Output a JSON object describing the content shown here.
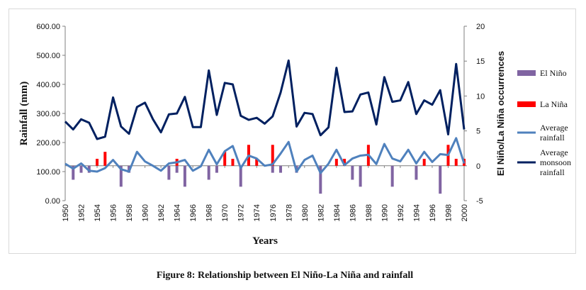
{
  "caption": "Figure 8: Relationship between El Niño-La Niña and rainfall",
  "chart_data": {
    "type": "bar",
    "title": "",
    "xlabel": "Years",
    "ylabel": "Rainfall (mm)",
    "y2label": "El Niño/La Niña occurrences",
    "ylim": [
      0,
      600
    ],
    "y2lim": [
      -5,
      20
    ],
    "yticks": [
      "0.00",
      "100.00",
      "200.00",
      "300.00",
      "400.00",
      "500.00",
      "600.00"
    ],
    "y2ticks": [
      "-5",
      "0",
      "5",
      "10",
      "15",
      "20"
    ],
    "xtick_labels": [
      "1950",
      "1952",
      "1954",
      "1956",
      "1958",
      "1960",
      "1962",
      "1964",
      "1966",
      "1968",
      "1970",
      "1972",
      "1974",
      "1976",
      "1978",
      "1980",
      "1982",
      "1984",
      "1986",
      "1988",
      "1990",
      "1992",
      "1994",
      "1996",
      "1998",
      "2000"
    ],
    "x": [
      1950,
      1951,
      1952,
      1953,
      1954,
      1955,
      1956,
      1957,
      1958,
      1959,
      1960,
      1961,
      1962,
      1963,
      1964,
      1965,
      1966,
      1967,
      1968,
      1969,
      1970,
      1971,
      1972,
      1973,
      1974,
      1975,
      1976,
      1977,
      1978,
      1979,
      1980,
      1981,
      1982,
      1983,
      1984,
      1985,
      1986,
      1987,
      1988,
      1989,
      1990,
      1991,
      1992,
      1993,
      1994,
      1995,
      1996,
      1997,
      1998,
      1999,
      2000
    ],
    "grid": false,
    "legend_position": "right",
    "series": [
      {
        "name": "El Niño",
        "kind": "bar",
        "axis": "right",
        "color": "#8064A2",
        "values": [
          0,
          -2,
          -1,
          -1,
          0,
          0,
          0,
          -3,
          -1,
          0,
          0,
          0,
          0,
          -2,
          -1,
          -3,
          0,
          0,
          -2,
          -1,
          0,
          0,
          -3,
          0,
          0,
          0,
          -1,
          -1,
          0,
          -1,
          0,
          0,
          -4,
          0,
          0,
          0,
          -2,
          -3,
          0,
          0,
          0,
          -3,
          0,
          0,
          -2,
          0,
          0,
          -4,
          0,
          0,
          0
        ]
      },
      {
        "name": "La Niña",
        "kind": "bar",
        "axis": "right",
        "color": "#FF0000",
        "values": [
          0,
          0,
          0,
          0,
          1,
          2,
          0,
          0,
          0,
          0,
          0,
          0,
          0,
          0,
          1,
          0,
          0,
          0,
          0,
          0,
          2,
          1,
          0,
          3,
          1,
          0,
          3,
          0,
          0,
          0,
          0,
          0,
          0,
          0,
          1,
          1,
          0,
          0,
          3,
          0,
          0,
          0,
          0,
          0,
          0,
          1,
          0,
          0,
          3,
          1,
          1
        ]
      },
      {
        "name": "Average rainfall",
        "kind": "line",
        "axis": "left",
        "color": "#4F81BD",
        "values": [
          127,
          110,
          128,
          103,
          100,
          112,
          140,
          108,
          100,
          168,
          135,
          120,
          103,
          128,
          132,
          140,
          103,
          118,
          175,
          125,
          170,
          188,
          112,
          155,
          145,
          120,
          125,
          162,
          202,
          100,
          140,
          155,
          95,
          127,
          175,
          122,
          145,
          155,
          158,
          126,
          195,
          145,
          135,
          175,
          128,
          168,
          133,
          160,
          157,
          215,
          128
        ]
      },
      {
        "name": "Average monsoon rainfall",
        "kind": "line",
        "axis": "left",
        "color": "#002060",
        "values": [
          272,
          245,
          280,
          268,
          212,
          220,
          355,
          255,
          230,
          322,
          337,
          280,
          235,
          297,
          300,
          357,
          253,
          253,
          448,
          295,
          405,
          400,
          292,
          278,
          285,
          265,
          290,
          372,
          482,
          255,
          302,
          298,
          225,
          252,
          457,
          305,
          307,
          365,
          372,
          262,
          425,
          340,
          345,
          408,
          298,
          345,
          330,
          380,
          228,
          470,
          245
        ]
      }
    ]
  }
}
